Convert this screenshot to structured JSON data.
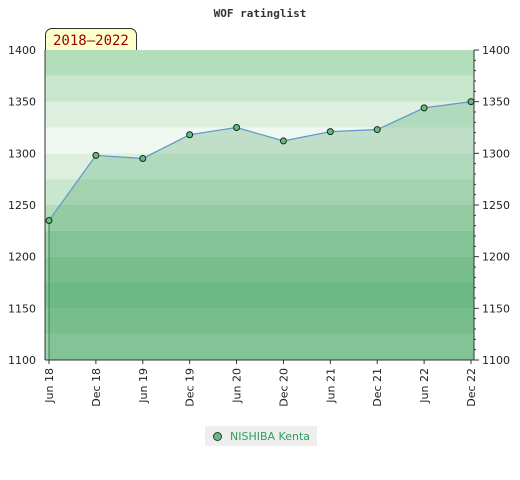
{
  "chart_data": {
    "type": "area",
    "title": "WOF ratinglist",
    "period": "2018–2022",
    "x": [
      "Jun 18",
      "Dec 18",
      "Jun 19",
      "Dec 19",
      "Jun 20",
      "Dec 20",
      "Jun 21",
      "Dec 21",
      "Jun 22",
      "Dec 22"
    ],
    "series": [
      {
        "name": "NISHIBA Kenta",
        "values": [
          1235,
          1298,
          1295,
          1318,
          1325,
          1312,
          1321,
          1323,
          1344,
          1350
        ]
      }
    ],
    "ylim": [
      1100,
      1400
    ],
    "yticks": [
      1100,
      1150,
      1200,
      1250,
      1300,
      1350,
      1400
    ],
    "ylabel": "",
    "xlabel": "",
    "legend_position": "bottom-center",
    "colors": {
      "fill": "#8fcc9f",
      "line": "#6699cc",
      "marker": "#5fbf7f",
      "legend_text": "#2e9e5e",
      "period_text": "#990000"
    }
  }
}
